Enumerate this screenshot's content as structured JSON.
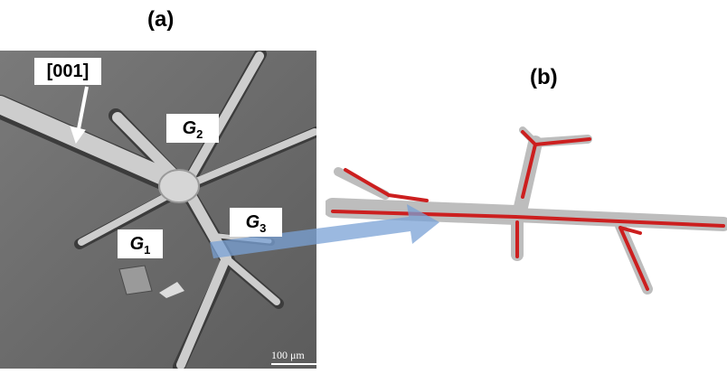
{
  "panel_a": {
    "label": "(a)",
    "direction": "[001]",
    "grains": [
      {
        "symbol": "G",
        "index": "2"
      },
      {
        "symbol": "G",
        "index": "3"
      },
      {
        "symbol": "G",
        "index": "1"
      }
    ],
    "scale_bar": "100 μm"
  },
  "panel_b": {
    "label": "(b)"
  },
  "colors": {
    "sem_background": "#6e6e6e",
    "dendrite": "#c8c8c8",
    "trace_red": "#cc1f1f",
    "arrow_blue": "#7aa2d6"
  }
}
